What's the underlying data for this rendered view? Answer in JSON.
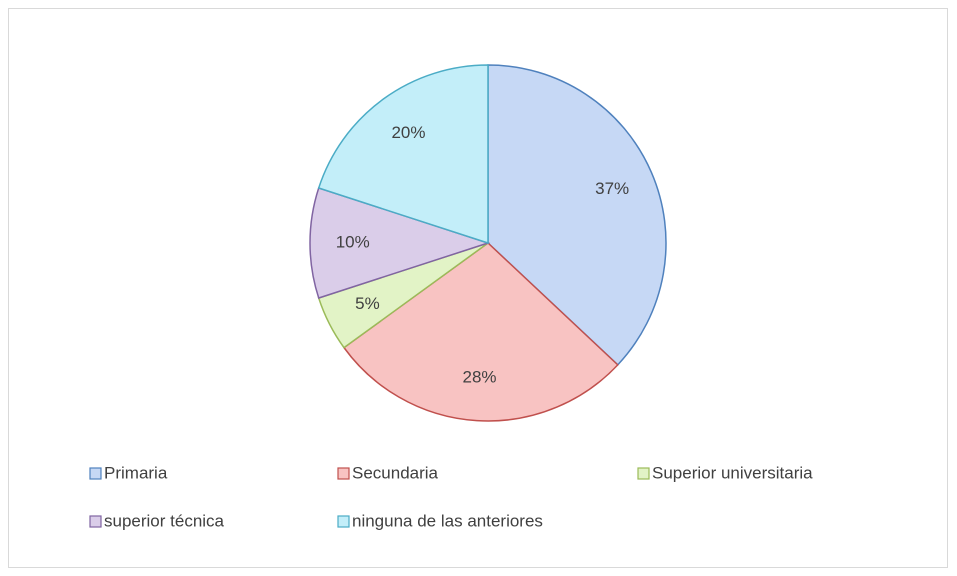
{
  "chart_data": {
    "type": "pie",
    "categories": [
      "Primaria",
      "Secundaria",
      "Superior universitaria",
      "superior técnica",
      "ninguna de las anteriores"
    ],
    "values": [
      37,
      28,
      5,
      10,
      20
    ],
    "value_labels": [
      "37%",
      "28%",
      "5%",
      "10%",
      "20%"
    ],
    "colors": [
      "#4f81bd",
      "#c0504d",
      "#9bbb59",
      "#8064a2",
      "#4bacc6"
    ],
    "fill_colors": [
      "#c6d8f5",
      "#f8c3c2",
      "#e2f3c6",
      "#dacde9",
      "#c3eef9"
    ],
    "legend": "bottom"
  }
}
